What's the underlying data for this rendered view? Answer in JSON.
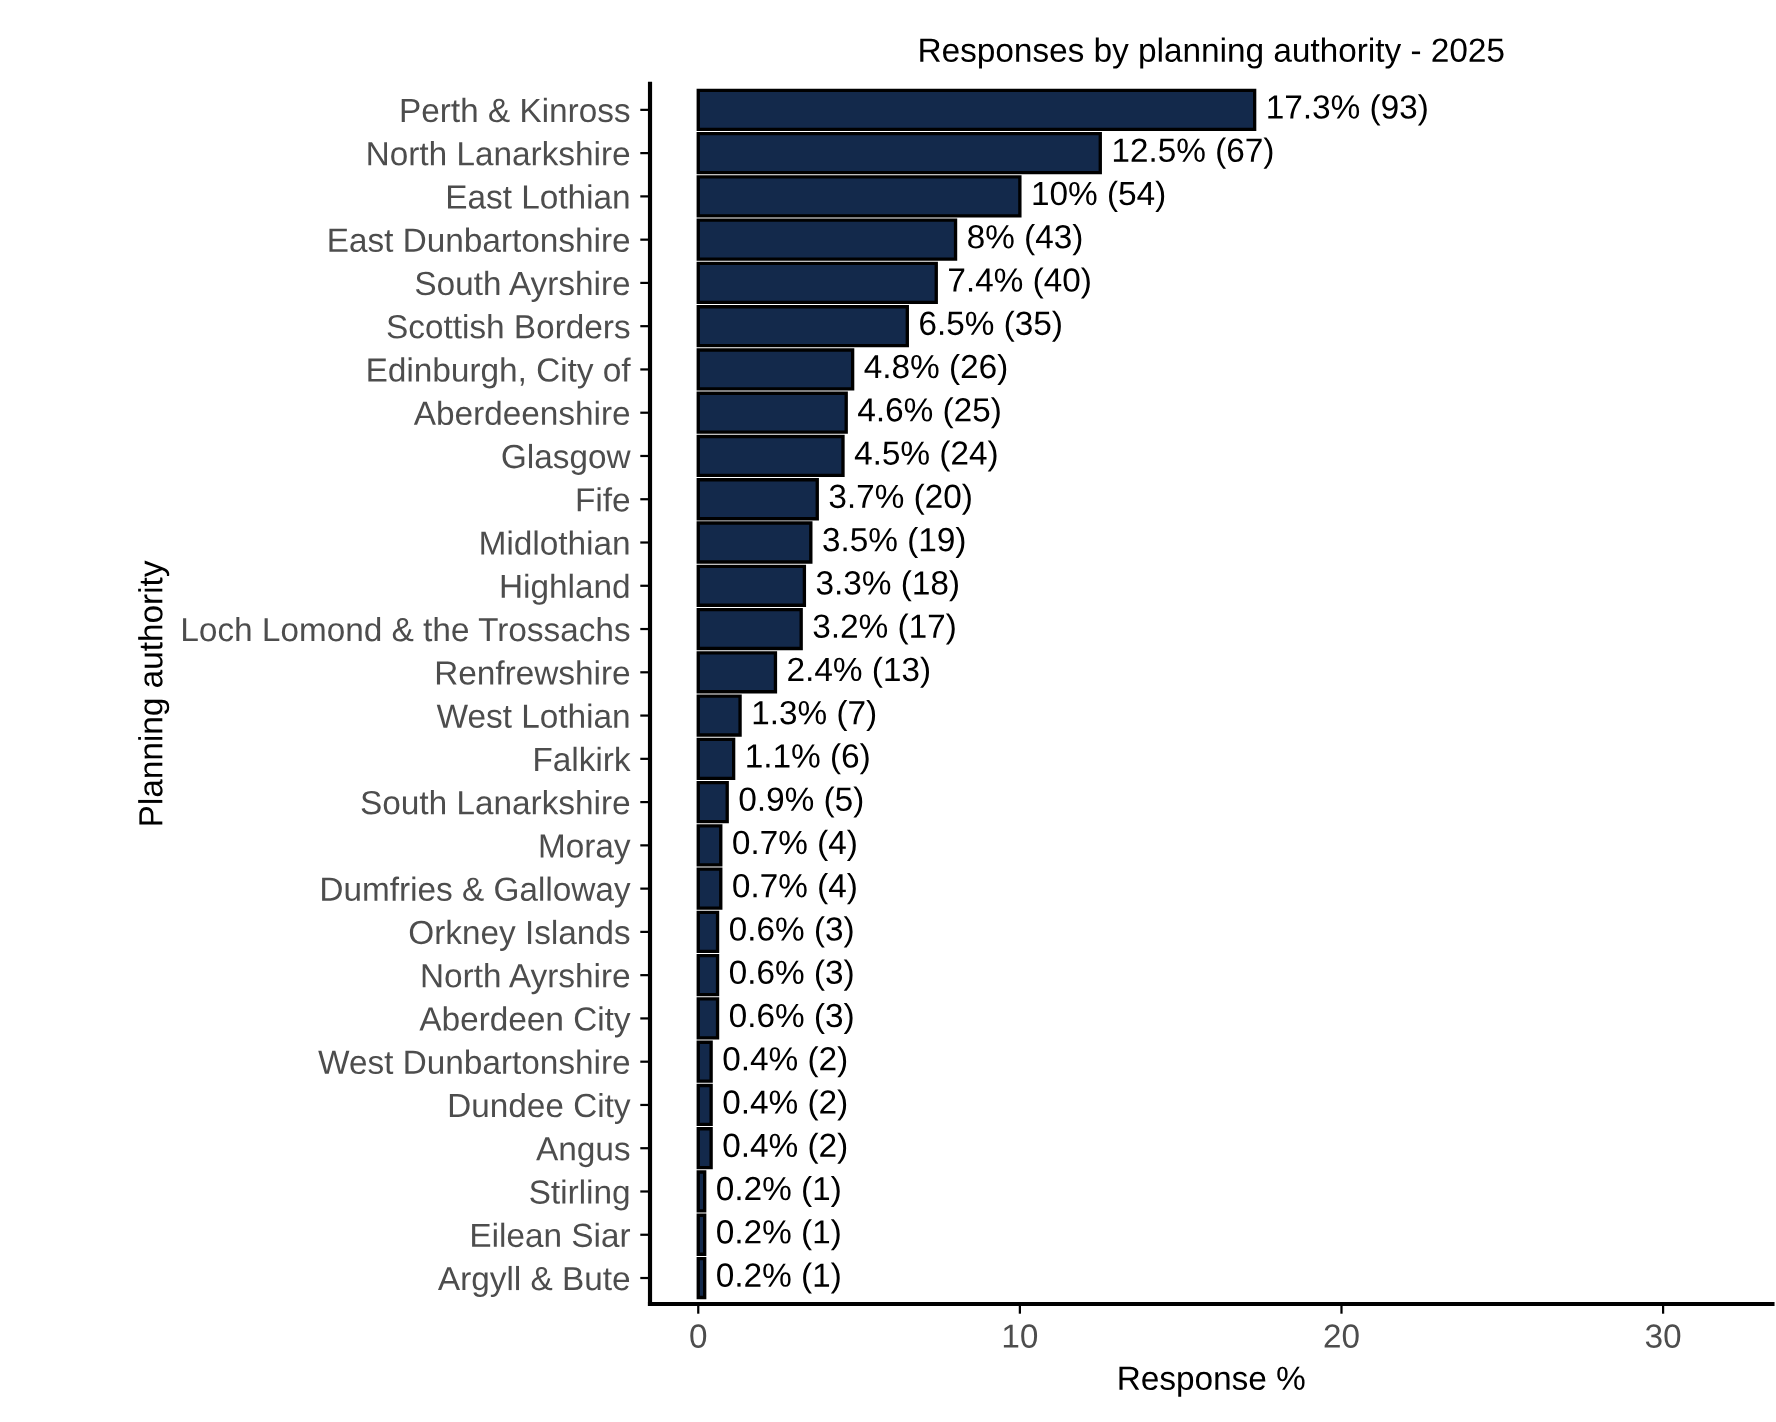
{
  "chart_data": {
    "type": "bar",
    "orientation": "horizontal",
    "title": "Responses by planning authority - 2025",
    "xlabel": "Response %",
    "ylabel": "Planning authority",
    "categories": [
      "Perth & Kinross",
      "North Lanarkshire",
      "East Lothian",
      "East Dunbartonshire",
      "South Ayrshire",
      "Scottish Borders",
      "Edinburgh, City of",
      "Aberdeenshire",
      "Glasgow",
      "Fife",
      "Midlothian",
      "Highland",
      "Loch Lomond & the Trossachs",
      "Renfrewshire",
      "West Lothian",
      "Falkirk",
      "South Lanarkshire",
      "Moray",
      "Dumfries & Galloway",
      "Orkney Islands",
      "North Ayrshire",
      "Aberdeen City",
      "West Dunbartonshire",
      "Dundee City",
      "Angus",
      "Stirling",
      "Eilean Siar",
      "Argyll & Bute"
    ],
    "values": [
      17.3,
      12.5,
      10,
      8,
      7.4,
      6.5,
      4.8,
      4.6,
      4.5,
      3.7,
      3.5,
      3.3,
      3.2,
      2.4,
      1.3,
      1.1,
      0.9,
      0.7,
      0.7,
      0.6,
      0.6,
      0.6,
      0.4,
      0.4,
      0.4,
      0.2,
      0.2,
      0.2
    ],
    "value_labels": [
      "17.3% (93)",
      "12.5% (67)",
      "10% (54)",
      "8% (43)",
      "7.4% (40)",
      "6.5% (35)",
      "4.8% (26)",
      "4.6% (25)",
      "4.5% (24)",
      "3.7% (20)",
      "3.5% (19)",
      "3.3% (18)",
      "3.2% (17)",
      "2.4% (13)",
      "1.3% (7)",
      "1.1% (6)",
      "0.9% (5)",
      "0.7% (4)",
      "0.7% (4)",
      "0.6% (3)",
      "0.6% (3)",
      "0.6% (3)",
      "0.4% (2)",
      "0.4% (2)",
      "0.4% (2)",
      "0.2% (1)",
      "0.2% (1)",
      "0.2% (1)"
    ],
    "color": "#13294b",
    "xlim": [
      -1.5,
      33.4
    ],
    "xticks": [
      0,
      10,
      20,
      30
    ],
    "grid": false,
    "legend": false
  }
}
